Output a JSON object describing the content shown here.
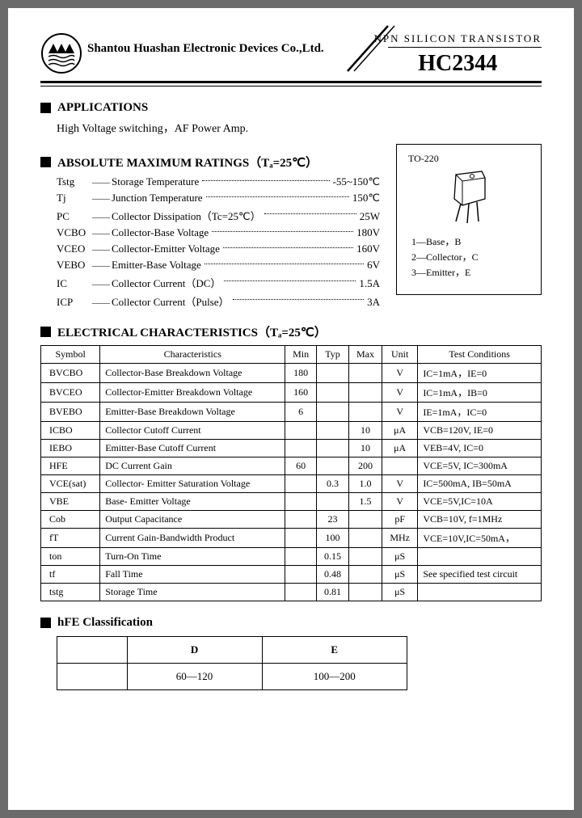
{
  "header": {
    "company": "Shantou Huashan Electronic Devices Co.,Ltd.",
    "type_label": "NPN SILICON TRANSISTOR",
    "part_number": "HC2344"
  },
  "sections": {
    "applications": {
      "title": "APPLICATIONS",
      "text": "High Voltage switching，AF Power Amp."
    },
    "amr": {
      "title": "ABSOLUTE MAXIMUM RATINGS（Tₐ=25℃）",
      "rows": [
        {
          "sym": "Tstg",
          "desc": "Storage Temperature",
          "val": "-55~150℃"
        },
        {
          "sym": "Tj",
          "desc": "Junction Temperature",
          "val": "150℃"
        },
        {
          "sym": "PC",
          "desc": "Collector Dissipation（Tc=25℃）",
          "val": "25W"
        },
        {
          "sym": "VCBO",
          "desc": "Collector-Base Voltage",
          "val": "180V"
        },
        {
          "sym": "VCEO",
          "desc": "Collector-Emitter Voltage",
          "val": "160V"
        },
        {
          "sym": "VEBO",
          "desc": "Emitter-Base Voltage",
          "val": "6V"
        },
        {
          "sym": "IC",
          "desc": "Collector Current（DC）",
          "val": "1.5A"
        },
        {
          "sym": "ICP",
          "desc": "Collector Current（Pulse）",
          "val": "3A"
        }
      ]
    },
    "package": {
      "label": "TO-220",
      "pins": [
        "1—Base，B",
        "2—Collector，C",
        "3—Emitter，E"
      ]
    },
    "ec": {
      "title": "ELECTRICAL CHARACTERISTICS（Tₐ=25℃）",
      "headers": [
        "Symbol",
        "Characteristics",
        "Min",
        "Typ",
        "Max",
        "Unit",
        "Test Conditions"
      ],
      "rows": [
        [
          "BVCBO",
          "Collector-Base Breakdown Voltage",
          "180",
          "",
          "",
          "V",
          "IC=1mA，IE=0"
        ],
        [
          "BVCEO",
          "Collector-Emitter Breakdown Voltage",
          "160",
          "",
          "",
          "V",
          "IC=1mA，IB=0"
        ],
        [
          "BVEBO",
          "Emitter-Base Breakdown Voltage",
          "6",
          "",
          "",
          "V",
          "IE=1mA，IC=0"
        ],
        [
          "ICBO",
          "Collector Cutoff Current",
          "",
          "",
          "10",
          "μA",
          "VCB=120V, IE=0"
        ],
        [
          "IEBO",
          "Emitter-Base Cutoff Current",
          "",
          "",
          "10",
          "μA",
          "VEB=4V, IC=0"
        ],
        [
          "HFE",
          "DC Current Gain",
          "60",
          "",
          "200",
          "",
          "VCE=5V, IC=300mA"
        ],
        [
          "VCE(sat)",
          "Collector- Emitter Saturation Voltage",
          "",
          "0.3",
          "1.0",
          "V",
          "IC=500mA, IB=50mA"
        ],
        [
          "VBE",
          "Base- Emitter Voltage",
          "",
          "",
          "1.5",
          "V",
          "VCE=5V,IC=10A"
        ],
        [
          "Cob",
          "Output Capacitance",
          "",
          "23",
          "",
          "pF",
          "VCB=10V, f=1MHz"
        ],
        [
          "fT",
          "Current Gain-Bandwidth Product",
          "",
          "100",
          "",
          "MHz",
          "VCE=10V,IC=50mA，"
        ],
        [
          "ton",
          "Turn-On Time",
          "",
          "0.15",
          "",
          "μS",
          ""
        ],
        [
          "tf",
          "Fall Time",
          "",
          "0.48",
          "",
          "μS",
          "See specified test circuit"
        ],
        [
          "tstg",
          "Storage Time",
          "",
          "0.81",
          "",
          "μS",
          ""
        ]
      ]
    },
    "hfe": {
      "title": "hFE  Classification",
      "headers": [
        "",
        "D",
        "E"
      ],
      "row": [
        "",
        "60—120",
        "100—200"
      ]
    }
  },
  "style": {
    "text_color": "#000000",
    "bg": "#ffffff",
    "page_bg": "#6b6b6b"
  }
}
